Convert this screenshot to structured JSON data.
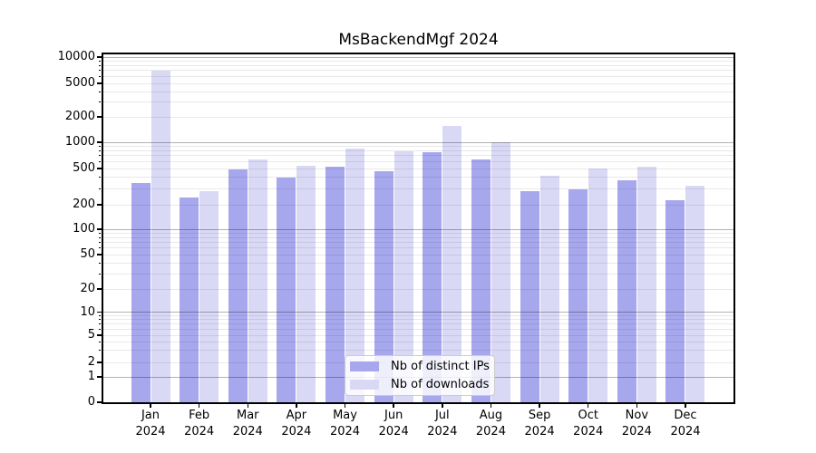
{
  "figure": {
    "title": "MsBackendMgf 2024"
  },
  "chart_data": {
    "type": "bar",
    "title": "MsBackendMgf 2024",
    "yscale": "symlog",
    "grid": true,
    "legend_position": "lower center",
    "ylim": [
      0,
      11500
    ],
    "yticks": [
      0,
      1,
      2,
      5,
      10,
      20,
      50,
      100,
      200,
      500,
      1000,
      2000,
      5000,
      10000
    ],
    "categories": [
      "Jan",
      "Feb",
      "Mar",
      "Apr",
      "May",
      "Jun",
      "Jul",
      "Aug",
      "Sep",
      "Oct",
      "Nov",
      "Dec"
    ],
    "xtick_year": "2024",
    "series": [
      {
        "name": "Nb of distinct IPs",
        "color": "#a7a7ee",
        "values": [
          345,
          240,
          490,
          395,
          520,
          465,
          770,
          630,
          285,
          295,
          370,
          225
        ]
      },
      {
        "name": "Nb of downloads",
        "color": "#d9d9f6",
        "values": [
          7000,
          285,
          630,
          540,
          840,
          780,
          1580,
          1000,
          415,
          500,
          520,
          320
        ]
      }
    ]
  }
}
